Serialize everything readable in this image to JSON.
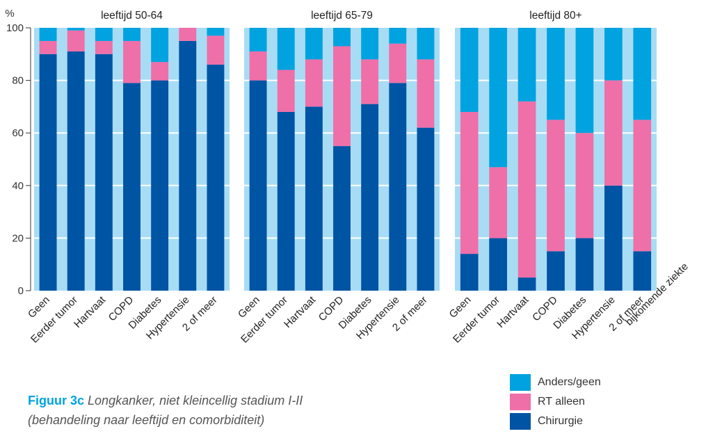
{
  "colors": {
    "panel_bg": "#a8dcf5",
    "chirurgie": "#0054a4",
    "rt_alleen": "#ef6fa9",
    "anders_geen": "#00a3df",
    "caption_accent": "#00a3df"
  },
  "caption": {
    "figure": "Figuur 3c",
    "line1": "Longkanker, niet kleincellig stadium I-II",
    "line2": "(behandeling naar leeftijd en comorbiditeit)"
  },
  "legend": [
    {
      "label": "Anders/geen",
      "color": "#00a3df"
    },
    {
      "label": "RT alleen",
      "color": "#ef6fa9"
    },
    {
      "label": "Chirurgie",
      "color": "#0054a4"
    }
  ],
  "chart_data": {
    "type": "bar",
    "stacked": true,
    "y_unit_label": "%",
    "ylim": [
      0,
      100
    ],
    "yticks": [
      0,
      20,
      40,
      60,
      80,
      100
    ],
    "grid": true,
    "x_extra_label": "bijkomende ziekte",
    "categories": [
      "Geen",
      "Eerder tumor",
      "Hartvaat",
      "COPD",
      "Diabetes",
      "Hypertensie",
      "2 of meer"
    ],
    "panels": [
      {
        "title": "leeftijd 50-64",
        "series": [
          {
            "name": "Chirurgie",
            "values": [
              90,
              91,
              90,
              79,
              80,
              95,
              86
            ]
          },
          {
            "name": "RT alleen",
            "values": [
              5,
              8,
              5,
              16,
              7,
              5,
              11
            ]
          },
          {
            "name": "Anders/geen",
            "values": [
              5,
              1,
              5,
              5,
              13,
              0,
              3
            ]
          }
        ]
      },
      {
        "title": "leeftijd 65-79",
        "series": [
          {
            "name": "Chirurgie",
            "values": [
              80,
              68,
              70,
              55,
              71,
              79,
              62
            ]
          },
          {
            "name": "RT alleen",
            "values": [
              11,
              16,
              18,
              38,
              17,
              15,
              26
            ]
          },
          {
            "name": "Anders/geen",
            "values": [
              9,
              16,
              12,
              7,
              12,
              6,
              12
            ]
          }
        ]
      },
      {
        "title": "leeftijd 80+",
        "series": [
          {
            "name": "Chirurgie",
            "values": [
              14,
              20,
              5,
              15,
              20,
              40,
              15
            ]
          },
          {
            "name": "RT alleen",
            "values": [
              54,
              27,
              67,
              50,
              40,
              40,
              50
            ]
          },
          {
            "name": "Anders/geen",
            "values": [
              32,
              53,
              28,
              35,
              40,
              20,
              35
            ]
          }
        ]
      }
    ]
  }
}
